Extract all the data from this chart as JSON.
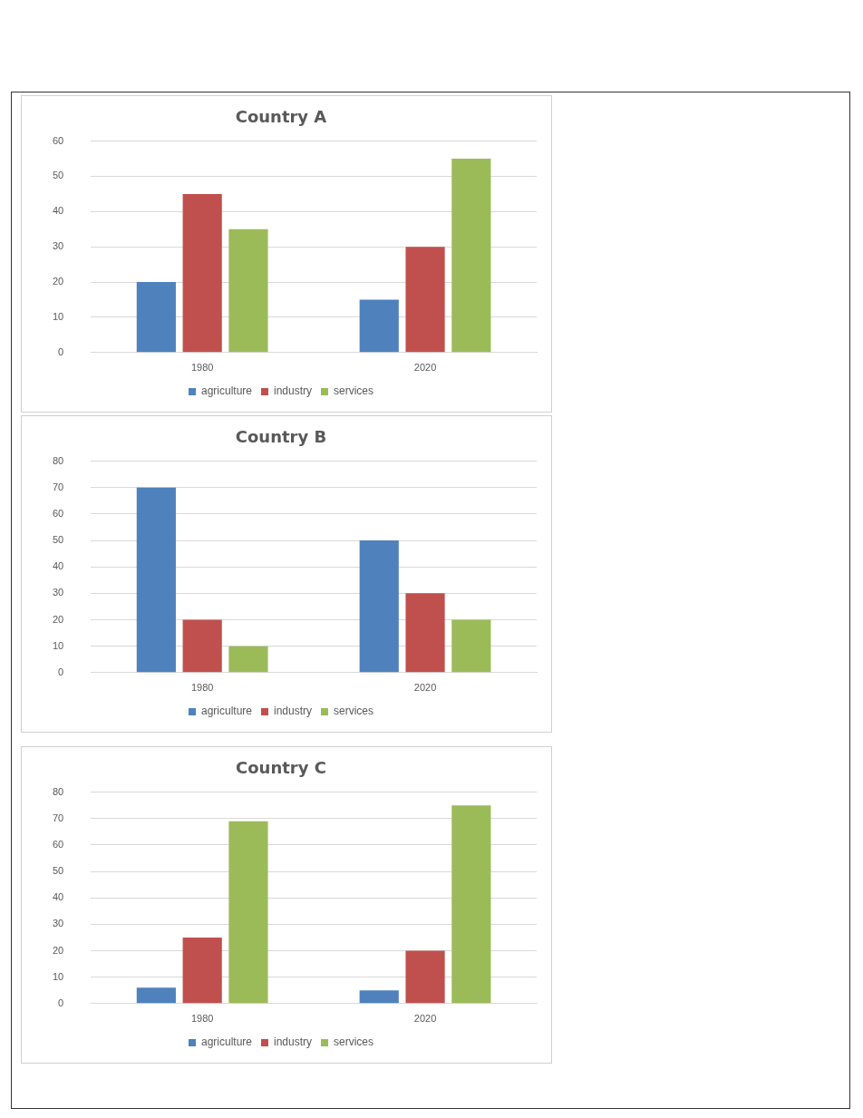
{
  "chart_data": [
    {
      "type": "bar",
      "title": "Country A",
      "categories": [
        "1980",
        "2020"
      ],
      "series": [
        {
          "name": "agriculture",
          "color": "#4f81bd",
          "values": [
            20,
            15
          ]
        },
        {
          "name": "industry",
          "color": "#c0504d",
          "values": [
            45,
            30
          ]
        },
        {
          "name": "services",
          "color": "#9bbb59",
          "values": [
            35,
            55
          ]
        }
      ],
      "ylim": [
        0,
        60
      ],
      "yticks": [
        0,
        10,
        20,
        30,
        40,
        50,
        60
      ],
      "grid": "y",
      "legend": "bottom"
    },
    {
      "type": "bar",
      "title": "Country B",
      "categories": [
        "1980",
        "2020"
      ],
      "series": [
        {
          "name": "agriculture",
          "color": "#4f81bd",
          "values": [
            70,
            50
          ]
        },
        {
          "name": "industry",
          "color": "#c0504d",
          "values": [
            20,
            30
          ]
        },
        {
          "name": "services",
          "color": "#9bbb59",
          "values": [
            10,
            20
          ]
        }
      ],
      "ylim": [
        0,
        80
      ],
      "yticks": [
        0,
        10,
        20,
        30,
        40,
        50,
        60,
        70,
        80
      ],
      "grid": "y",
      "legend": "bottom"
    },
    {
      "type": "bar",
      "title": "Country C",
      "categories": [
        "1980",
        "2020"
      ],
      "series": [
        {
          "name": "agriculture",
          "color": "#4f81bd",
          "values": [
            6,
            5
          ]
        },
        {
          "name": "industry",
          "color": "#c0504d",
          "values": [
            25,
            20
          ]
        },
        {
          "name": "services",
          "color": "#9bbb59",
          "values": [
            69,
            75
          ]
        }
      ],
      "ylim": [
        0,
        80
      ],
      "yticks": [
        0,
        10,
        20,
        30,
        40,
        50,
        60,
        70,
        80
      ],
      "grid": "y",
      "legend": "bottom"
    }
  ]
}
